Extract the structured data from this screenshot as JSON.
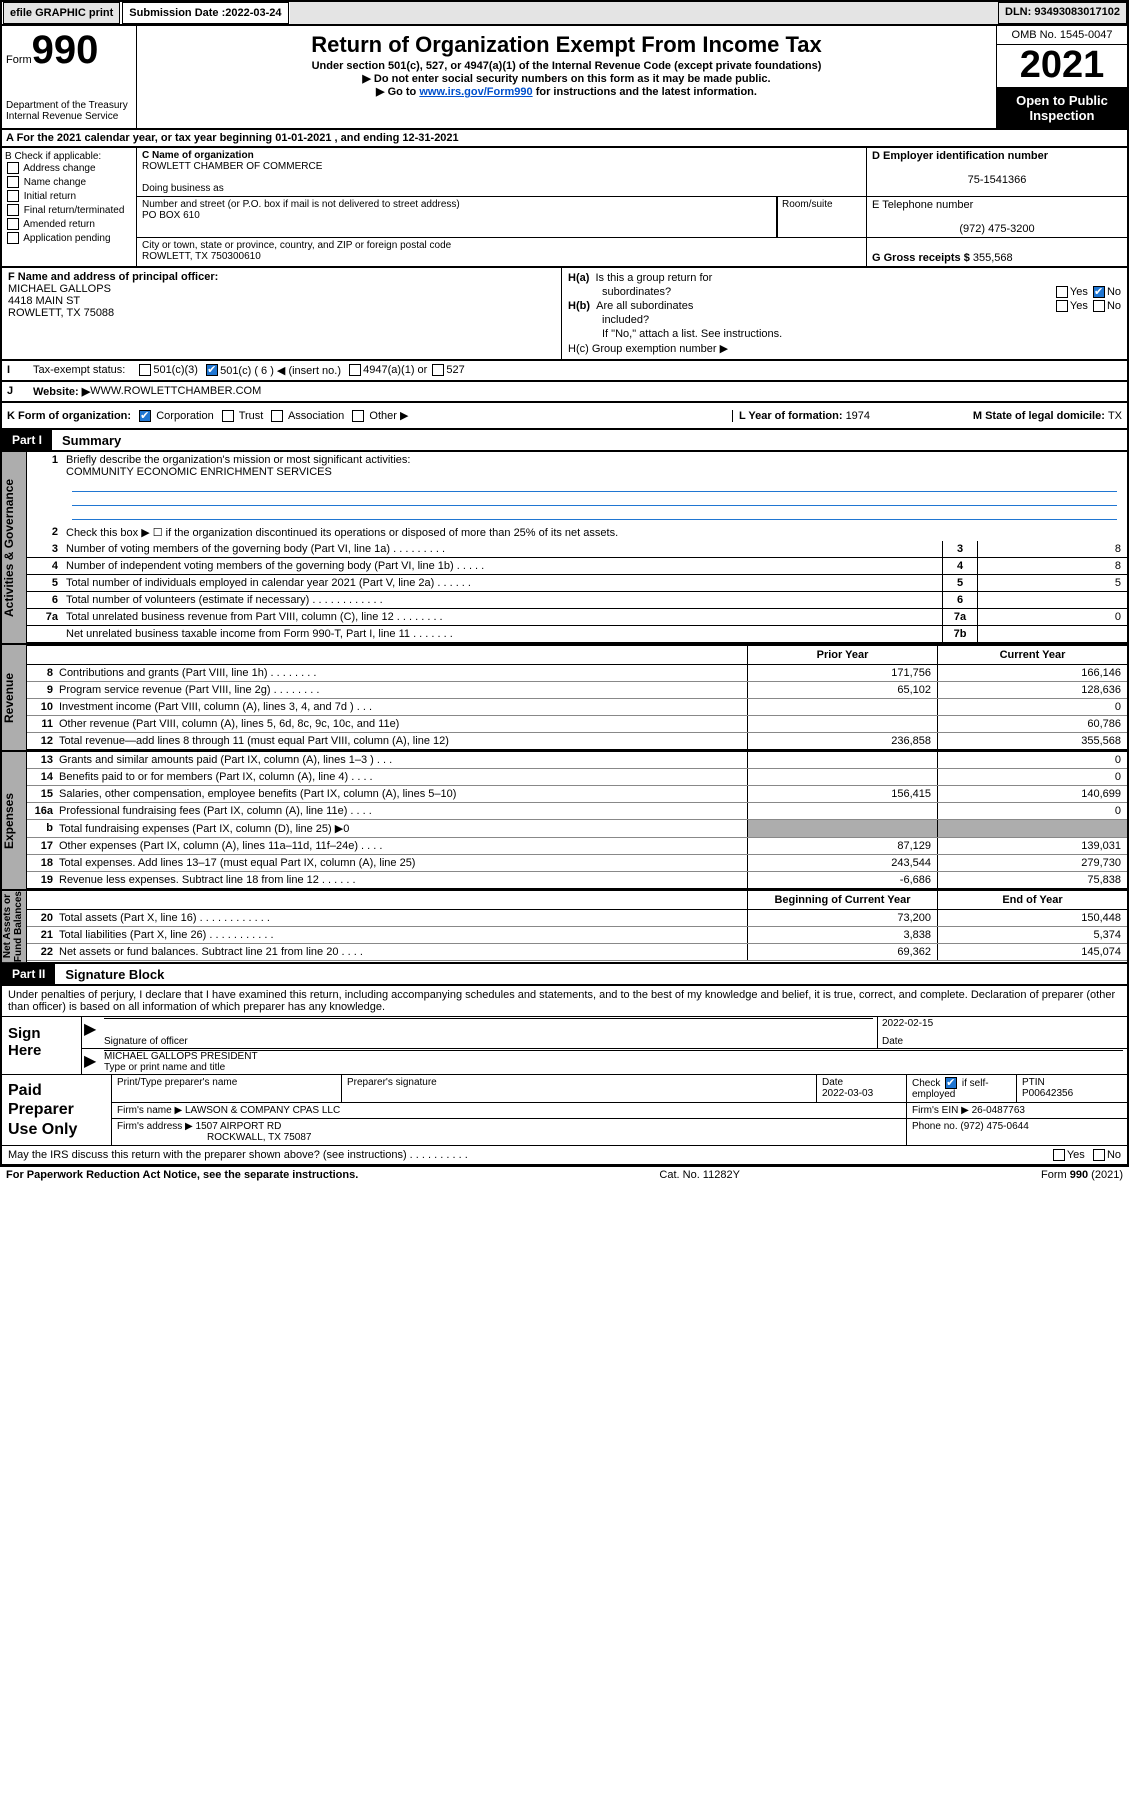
{
  "colors": {
    "link": "#0050cd",
    "accent_check": "#2076d2",
    "gray_bg": "#adadad",
    "black": "#000000",
    "white": "#ffffff"
  },
  "topbar": {
    "efile": "efile GRAPHIC print",
    "submission_label": "Submission Date : ",
    "submission_date": "2022-03-24",
    "dln_label": "DLN: ",
    "dln": "93493083017102"
  },
  "header": {
    "form_prefix": "Form",
    "form_number": "990",
    "title": "Return of Organization Exempt From Income Tax",
    "subtitle": "Under section 501(c), 527, or 4947(a)(1) of the Internal Revenue Code (except private foundations)",
    "note1": "▶ Do not enter social security numbers on this form as it may be made public.",
    "note2_pre": "▶ Go to ",
    "note2_link": "www.irs.gov/Form990",
    "note2_post": " for instructions and the latest information.",
    "dept": "Department of the Treasury\nInternal Revenue Service",
    "omb": "OMB No. 1545-0047",
    "year": "2021",
    "open": "Open to Public Inspection"
  },
  "rowA": {
    "text_pre": "A For the 2021 calendar year, or tax year beginning ",
    "begin": "01-01-2021",
    "mid": " , and ending ",
    "end": "12-31-2021"
  },
  "sectionB": {
    "label": "B Check if applicable:",
    "items": [
      "Address change",
      "Name change",
      "Initial return",
      "Final return/terminated",
      "Amended return",
      "Application pending"
    ]
  },
  "boxC": {
    "name_lbl": "C Name of organization",
    "name": "ROWLETT CHAMBER OF COMMERCE",
    "dba_lbl": "Doing business as",
    "addr_lbl": "Number and street (or P.O. box if mail is not delivered to street address)",
    "addr": "PO BOX 610",
    "room_lbl": "Room/suite",
    "city_lbl": "City or town, state or province, country, and ZIP or foreign postal code",
    "city": "ROWLETT, TX  750300610"
  },
  "boxD": {
    "lbl": "D Employer identification number",
    "val": "75-1541366"
  },
  "boxE": {
    "lbl": "E Telephone number",
    "val": "(972) 475-3200"
  },
  "boxG": {
    "lbl": "G Gross receipts $ ",
    "val": "355,568"
  },
  "boxF": {
    "lbl": "F Name and address of principal officer:",
    "line1": "MICHAEL GALLOPS",
    "line2": "4418 MAIN ST",
    "line3": "ROWLETT, TX  75088"
  },
  "boxH": {
    "a_lbl": "H(a)  Is this a group return for subordinates?",
    "a_yes": "Yes",
    "a_no": "No",
    "b_lbl": "H(b)  Are all subordinates included?",
    "b_yes": "Yes",
    "b_no": "No",
    "b_note": "If \"No,\" attach a list. See instructions.",
    "c_lbl": "H(c)  Group exemption number ▶"
  },
  "rowI": {
    "lbl": "I",
    "txt": "Tax-exempt status:",
    "o1": "501(c)(3)",
    "o2": "501(c) ( 6 ) ◀ (insert no.)",
    "o3": "4947(a)(1) or",
    "o4": "527"
  },
  "rowJ": {
    "lbl": "J",
    "txt": "Website: ▶ ",
    "val": "WWW.ROWLETTCHAMBER.COM"
  },
  "rowK": {
    "lbl": "K Form of organization:",
    "o1": "Corporation",
    "o2": "Trust",
    "o3": "Association",
    "o4": "Other ▶",
    "l_lbl": "L Year of formation: ",
    "l_val": "1974",
    "m_lbl": "M State of legal domicile: ",
    "m_val": "TX"
  },
  "partI": {
    "tag": "Part I",
    "title": "Summary",
    "side_ag": "Activities & Governance",
    "side_rev": "Revenue",
    "side_exp": "Expenses",
    "side_net": "Net Assets or\nFund Balances",
    "q1_lbl": "1",
    "q1": "Briefly describe the organization's mission or most significant activities:",
    "q1_val": "COMMUNITY ECONOMIC ENRICHMENT SERVICES",
    "q2_lbl": "2",
    "q2": "Check this box ▶ ☐  if the organization discontinued its operations or disposed of more than 25% of its net assets.",
    "rows_ag": [
      {
        "n": "3",
        "d": "Number of voting members of the governing body (Part VI, line 1a)   .    .    .    .    .    .    .    .    .",
        "box": "3",
        "v": "8"
      },
      {
        "n": "4",
        "d": "Number of independent voting members of the governing body (Part VI, line 1b)    .    .    .    .    .",
        "box": "4",
        "v": "8"
      },
      {
        "n": "5",
        "d": "Total number of individuals employed in calendar year 2021 (Part V, line 2a)    .    .    .    .    .    .",
        "box": "5",
        "v": "5"
      },
      {
        "n": "6",
        "d": "Total number of volunteers (estimate if necessary)    .    .    .    .    .    .    .    .    .    .    .    .",
        "box": "6",
        "v": ""
      },
      {
        "n": "7a",
        "d": "Total unrelated business revenue from Part VIII, column (C), line 12    .    .    .    .    .    .    .    .",
        "box": "7a",
        "v": "0"
      },
      {
        "n": "",
        "d": "Net unrelated business taxable income from Form 990-T, Part I, line 11    .    .    .    .    .    .    .",
        "box": "7b",
        "v": ""
      }
    ],
    "col_prior": "Prior Year",
    "col_current": "Current Year",
    "rows_rev": [
      {
        "n": "8",
        "d": "Contributions and grants (Part VIII, line 1h)    .    .    .    .    .    .    .    .",
        "p": "171,756",
        "c": "166,146"
      },
      {
        "n": "9",
        "d": "Program service revenue (Part VIII, line 2g)    .    .    .    .    .    .    .    .",
        "p": "65,102",
        "c": "128,636"
      },
      {
        "n": "10",
        "d": "Investment income (Part VIII, column (A), lines 3, 4, and 7d )    .    .    .",
        "p": "",
        "c": "0"
      },
      {
        "n": "11",
        "d": "Other revenue (Part VIII, column (A), lines 5, 6d, 8c, 9c, 10c, and 11e)",
        "p": "",
        "c": "60,786"
      },
      {
        "n": "12",
        "d": "Total revenue—add lines 8 through 11 (must equal Part VIII, column (A), line 12)",
        "p": "236,858",
        "c": "355,568"
      }
    ],
    "rows_exp": [
      {
        "n": "13",
        "d": "Grants and similar amounts paid (Part IX, column (A), lines 1–3 )    .    .    .",
        "p": "",
        "c": "0"
      },
      {
        "n": "14",
        "d": "Benefits paid to or for members (Part IX, column (A), line 4)    .    .    .    .",
        "p": "",
        "c": "0"
      },
      {
        "n": "15",
        "d": "Salaries, other compensation, employee benefits (Part IX, column (A), lines 5–10)",
        "p": "156,415",
        "c": "140,699"
      },
      {
        "n": "16a",
        "d": "Professional fundraising fees (Part IX, column (A), line 11e)    .    .    .    .",
        "p": "",
        "c": "0"
      },
      {
        "n": "b",
        "d": "Total fundraising expenses (Part IX, column (D), line 25) ▶0",
        "p": "GRAY",
        "c": "GRAY"
      },
      {
        "n": "17",
        "d": "Other expenses (Part IX, column (A), lines 11a–11d, 11f–24e)    .    .    .    .",
        "p": "87,129",
        "c": "139,031"
      },
      {
        "n": "18",
        "d": "Total expenses. Add lines 13–17 (must equal Part IX, column (A), line 25)",
        "p": "243,544",
        "c": "279,730"
      },
      {
        "n": "19",
        "d": "Revenue less expenses. Subtract line 18 from line 12    .    .    .    .    .    .",
        "p": "-6,686",
        "c": "75,838"
      }
    ],
    "col_begin": "Beginning of Current Year",
    "col_end": "End of Year",
    "rows_net": [
      {
        "n": "20",
        "d": "Total assets (Part X, line 16)    .    .    .    .    .    .    .    .    .    .    .    .",
        "p": "73,200",
        "c": "150,448"
      },
      {
        "n": "21",
        "d": "Total liabilities (Part X, line 26)    .    .    .    .    .    .    .    .    .    .    .",
        "p": "3,838",
        "c": "5,374"
      },
      {
        "n": "22",
        "d": "Net assets or fund balances. Subtract line 21 from line 20    .    .    .    .",
        "p": "69,362",
        "c": "145,074"
      }
    ]
  },
  "partII": {
    "tag": "Part II",
    "title": "Signature Block",
    "decl": "Under penalties of perjury, I declare that I have examined this return, including accompanying schedules and statements, and to the best of my knowledge and belief, it is true, correct, and complete. Declaration of preparer (other than officer) is based on all information of which preparer has any knowledge.",
    "sign_here": "Sign Here",
    "sig_of": "Signature of officer",
    "sig_date_lbl": "Date",
    "sig_date": "2022-02-15",
    "sig_name": "MICHAEL GALLOPS  PRESIDENT",
    "sig_name_lbl": "Type or print name and title",
    "paid": "Paid Preparer Use Only",
    "pt_name_lbl": "Print/Type preparer's name",
    "pt_sig_lbl": "Preparer's signature",
    "pt_date_lbl": "Date",
    "pt_date": "2022-03-03",
    "pt_check_lbl": "Check ☑ if self-employed",
    "ptin_lbl": "PTIN",
    "ptin": "P00642356",
    "firm_name_lbl": "Firm's name    ▶ ",
    "firm_name": "LAWSON & COMPANY CPAS LLC",
    "firm_ein_lbl": "Firm's EIN ▶ ",
    "firm_ein": "26-0487763",
    "firm_addr_lbl": "Firm's address ▶ ",
    "firm_addr1": "1507 AIRPORT RD",
    "firm_addr2": "ROCKWALL, TX  75087",
    "firm_phone_lbl": "Phone no. ",
    "firm_phone": "(972) 475-0644",
    "discuss": "May the IRS discuss this return with the preparer shown above? (see instructions)    .    .    .    .    .    .    .    .    .    .",
    "discuss_yes": "Yes",
    "discuss_no": "No"
  },
  "footer": {
    "left": "For Paperwork Reduction Act Notice, see the separate instructions.",
    "mid": "Cat. No. 11282Y",
    "right_pre": "Form ",
    "right_b": "990",
    "right_post": " (2021)"
  }
}
